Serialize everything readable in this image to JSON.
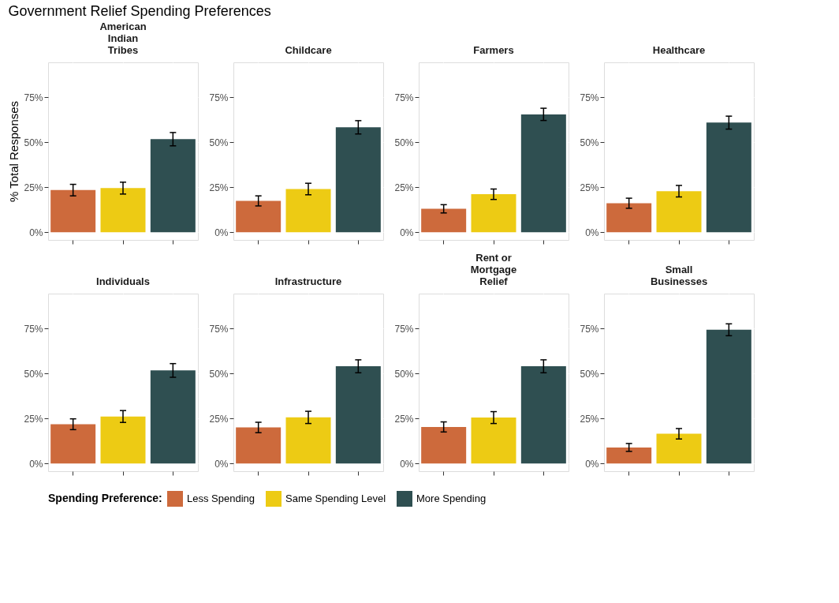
{
  "chart_data": [
    {
      "type": "bar",
      "title": "Government Relief Spending Preferences",
      "subtitle": "American\nIndian\nTribes",
      "ylabel": "% Total Responses",
      "grid": true,
      "tick_labels": "y",
      "categories": [
        null
      ],
      "ylim": [
        -4.3,
        94.4
      ],
      "yticks": [
        {
          "value": 0,
          "label": "0%"
        },
        {
          "value": 25,
          "label": "25%"
        },
        {
          "value": 50,
          "label": "50%"
        },
        {
          "value": 75,
          "label": "75%"
        }
      ],
      "series": [
        {
          "color": "#cd6a3c",
          "values": [
            23.4
          ],
          "errors": [
            3.2
          ]
        },
        {
          "color": "#edcb14",
          "values": [
            24.5
          ],
          "errors": [
            3.3
          ]
        },
        {
          "color": "#2f4f51",
          "values": [
            51.7
          ],
          "errors": [
            3.7
          ]
        }
      ]
    },
    {
      "type": "bar",
      "subtitle": "Childcare",
      "grid": true,
      "tick_labels": "y",
      "categories": [
        null
      ],
      "ylim": [
        -4.3,
        94.4
      ],
      "yticks": [
        {
          "value": 0,
          "label": "0%"
        },
        {
          "value": 25,
          "label": "25%"
        },
        {
          "value": 50,
          "label": "50%"
        },
        {
          "value": 75,
          "label": "75%"
        }
      ],
      "series": [
        {
          "color": "#cd6a3c",
          "values": [
            17.4
          ],
          "errors": [
            2.8
          ]
        },
        {
          "color": "#edcb14",
          "values": [
            24.0
          ],
          "errors": [
            3.2
          ]
        },
        {
          "color": "#2f4f51",
          "values": [
            58.3
          ],
          "errors": [
            3.7
          ]
        }
      ]
    },
    {
      "type": "bar",
      "subtitle": "Farmers",
      "grid": true,
      "tick_labels": "y",
      "categories": [
        null
      ],
      "ylim": [
        -4.3,
        94.4
      ],
      "yticks": [
        {
          "value": 0,
          "label": "0%"
        },
        {
          "value": 25,
          "label": "25%"
        },
        {
          "value": 50,
          "label": "50%"
        },
        {
          "value": 75,
          "label": "75%"
        }
      ],
      "series": [
        {
          "color": "#cd6a3c",
          "values": [
            13.0
          ],
          "errors": [
            2.3
          ]
        },
        {
          "color": "#edcb14",
          "values": [
            21.1
          ],
          "errors": [
            2.9
          ]
        },
        {
          "color": "#2f4f51",
          "values": [
            65.5
          ],
          "errors": [
            3.4
          ]
        }
      ]
    },
    {
      "type": "bar",
      "subtitle": "Healthcare",
      "grid": true,
      "tick_labels": "y",
      "categories": [
        null
      ],
      "ylim": [
        -4.3,
        94.4
      ],
      "yticks": [
        {
          "value": 0,
          "label": "0%"
        },
        {
          "value": 25,
          "label": "25%"
        },
        {
          "value": 50,
          "label": "50%"
        },
        {
          "value": 75,
          "label": "75%"
        }
      ],
      "series": [
        {
          "color": "#cd6a3c",
          "values": [
            16.1
          ],
          "errors": [
            2.8
          ]
        },
        {
          "color": "#edcb14",
          "values": [
            22.8
          ],
          "errors": [
            3.2
          ]
        },
        {
          "color": "#2f4f51",
          "values": [
            60.9
          ],
          "errors": [
            3.6
          ]
        }
      ]
    },
    {
      "type": "bar",
      "subtitle": "Individuals",
      "legend_title": "Spending Preference:",
      "legend": "bottom",
      "grid": true,
      "tick_labels": "y",
      "categories": [
        null
      ],
      "ylim": [
        -4.3,
        94.4
      ],
      "yticks": [
        {
          "value": 0,
          "label": "0%"
        },
        {
          "value": 25,
          "label": "25%"
        },
        {
          "value": 50,
          "label": "50%"
        },
        {
          "value": 75,
          "label": "75%"
        }
      ],
      "series": [
        {
          "name": "Less Spending",
          "color": "#cd6a3c",
          "values": [
            21.8
          ],
          "errors": [
            3.0
          ]
        },
        {
          "name": "Same Spending Level",
          "color": "#edcb14",
          "values": [
            26.1
          ],
          "errors": [
            3.3
          ]
        },
        {
          "name": "More Spending",
          "color": "#2f4f51",
          "values": [
            51.7
          ],
          "errors": [
            3.8
          ]
        }
      ]
    },
    {
      "type": "bar",
      "subtitle": "Infrastructure",
      "grid": true,
      "tick_labels": "y",
      "categories": [
        null
      ],
      "ylim": [
        -4.3,
        94.4
      ],
      "yticks": [
        {
          "value": 0,
          "label": "0%"
        },
        {
          "value": 25,
          "label": "25%"
        },
        {
          "value": 50,
          "label": "50%"
        },
        {
          "value": 75,
          "label": "75%"
        }
      ],
      "series": [
        {
          "color": "#cd6a3c",
          "values": [
            20.0
          ],
          "errors": [
            2.9
          ]
        },
        {
          "color": "#edcb14",
          "values": [
            25.6
          ],
          "errors": [
            3.4
          ]
        },
        {
          "color": "#2f4f51",
          "values": [
            54.0
          ],
          "errors": [
            3.6
          ]
        }
      ]
    },
    {
      "type": "bar",
      "subtitle": "Rent or\nMortgage\nRelief",
      "grid": true,
      "tick_labels": "y",
      "categories": [
        null
      ],
      "ylim": [
        -4.3,
        94.4
      ],
      "yticks": [
        {
          "value": 0,
          "label": "0%"
        },
        {
          "value": 25,
          "label": "25%"
        },
        {
          "value": 50,
          "label": "50%"
        },
        {
          "value": 75,
          "label": "75%"
        }
      ],
      "series": [
        {
          "color": "#cd6a3c",
          "values": [
            20.3
          ],
          "errors": [
            2.8
          ]
        },
        {
          "color": "#edcb14",
          "values": [
            25.5
          ],
          "errors": [
            3.3
          ]
        },
        {
          "color": "#2f4f51",
          "values": [
            54.0
          ],
          "errors": [
            3.6
          ]
        }
      ]
    },
    {
      "type": "bar",
      "subtitle": "Small\nBusinesses",
      "grid": true,
      "tick_labels": "y",
      "categories": [
        null
      ],
      "ylim": [
        -4.3,
        94.4
      ],
      "yticks": [
        {
          "value": 0,
          "label": "0%"
        },
        {
          "value": 25,
          "label": "25%"
        },
        {
          "value": 50,
          "label": "50%"
        },
        {
          "value": 75,
          "label": "75%"
        }
      ],
      "series": [
        {
          "color": "#cd6a3c",
          "values": [
            8.9
          ],
          "errors": [
            2.2
          ]
        },
        {
          "color": "#edcb14",
          "values": [
            16.5
          ],
          "errors": [
            2.9
          ]
        },
        {
          "color": "#2f4f51",
          "values": [
            74.3
          ],
          "errors": [
            3.3
          ]
        }
      ]
    }
  ]
}
